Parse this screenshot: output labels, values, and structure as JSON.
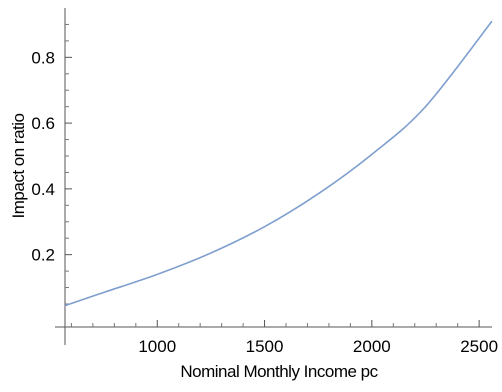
{
  "chart_data": {
    "type": "line",
    "title": "",
    "xlabel": "Nominal Monthly Income pc",
    "ylabel": "Impact on ratio",
    "xlim": [
      570,
      2560
    ],
    "ylim": [
      -0.02,
      0.95
    ],
    "x_ticks": [
      1000,
      1500,
      2000,
      2500
    ],
    "x_tick_labels": [
      "1000",
      "1500",
      "2000",
      "2500"
    ],
    "y_ticks": [
      0.2,
      0.4,
      0.6,
      0.8
    ],
    "y_tick_labels": [
      "0.2",
      "0.4",
      "0.6",
      "0.8"
    ],
    "grid": false,
    "legend": "none",
    "series": [
      {
        "color": "#7f9fcf",
        "x": [
          570,
          750,
          1000,
          1250,
          1500,
          1750,
          2000,
          2250,
          2560
        ],
        "y": [
          0.045,
          0.085,
          0.14,
          0.205,
          0.285,
          0.385,
          0.505,
          0.65,
          0.91
        ]
      }
    ]
  }
}
